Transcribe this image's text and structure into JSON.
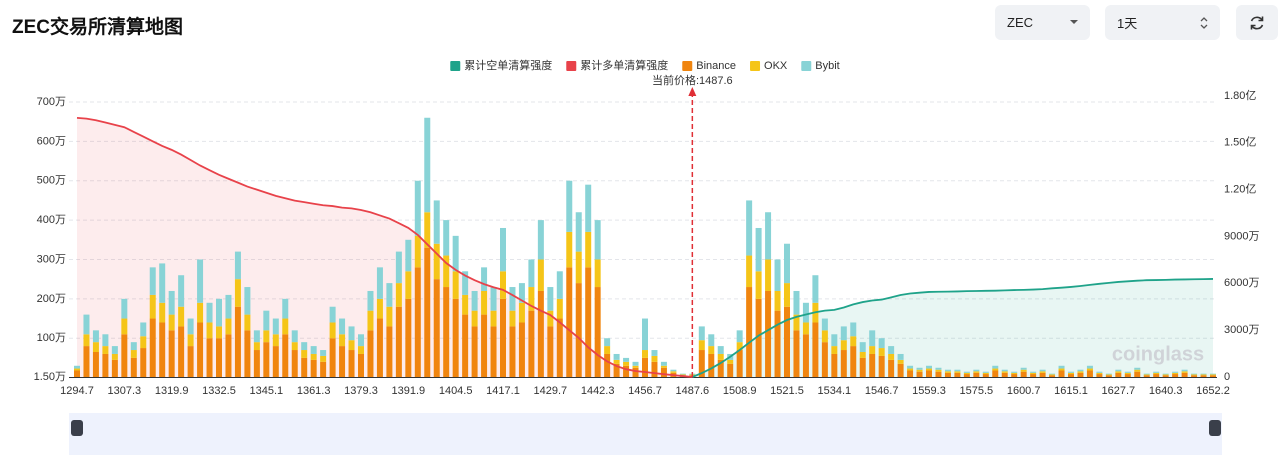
{
  "header": {
    "title": "ZEC交易所清算地图",
    "symbol": "ZEC",
    "range": "1天"
  },
  "chart_data": {
    "type": "bar",
    "watermark": "coinglass",
    "current_price": 1487.6,
    "current_price_label": "当前价格:1487.6",
    "grid": true,
    "categories": [
      "1294.7",
      null,
      null,
      null,
      null,
      "1307.3",
      null,
      null,
      null,
      null,
      "1319.9",
      null,
      null,
      null,
      null,
      "1332.5",
      null,
      null,
      null,
      null,
      "1345.1",
      null,
      null,
      null,
      null,
      "1361.3",
      null,
      null,
      null,
      null,
      "1379.3",
      null,
      null,
      null,
      null,
      "1391.9",
      null,
      null,
      null,
      null,
      "1404.5",
      null,
      null,
      null,
      null,
      "1417.1",
      null,
      null,
      null,
      null,
      "1429.7",
      null,
      null,
      null,
      null,
      "1442.3",
      null,
      null,
      null,
      null,
      "1456.7",
      null,
      null,
      null,
      null,
      "1487.6",
      null,
      null,
      null,
      null,
      "1508.9",
      null,
      null,
      null,
      null,
      "1521.5",
      null,
      null,
      null,
      null,
      "1534.1",
      null,
      null,
      null,
      null,
      "1546.7",
      null,
      null,
      null,
      null,
      "1559.3",
      null,
      null,
      null,
      null,
      "1575.5",
      null,
      null,
      null,
      null,
      "1600.7",
      null,
      null,
      null,
      null,
      "1615.1",
      null,
      null,
      null,
      null,
      "1627.7",
      null,
      null,
      null,
      null,
      "1640.3",
      null,
      null,
      null,
      null,
      "1652.2"
    ],
    "ylim": [
      1.5,
      700
    ],
    "yticks": [
      {
        "value": 1.5,
        "label": "1.50万"
      },
      {
        "value": 100,
        "label": "100万"
      },
      {
        "value": 200,
        "label": "200万"
      },
      {
        "value": 300,
        "label": "300万"
      },
      {
        "value": 400,
        "label": "400万"
      },
      {
        "value": 500,
        "label": "500万"
      },
      {
        "value": 600,
        "label": "600万"
      },
      {
        "value": 700,
        "label": "700万"
      }
    ],
    "y2lim": [
      0,
      18000
    ],
    "y2ticks": [
      0,
      {
        "value": 3000,
        "label": "3000万"
      },
      {
        "value": 6000,
        "label": "6000万"
      },
      {
        "value": 9000,
        "label": "9000万"
      },
      {
        "value": 12000,
        "label": "1.20亿"
      },
      {
        "value": 15000,
        "label": "1.50亿"
      },
      {
        "value": 18000,
        "label": "1.80亿"
      }
    ],
    "series": [
      {
        "name": "累计空单清算强度",
        "type": "line",
        "axis": "y2",
        "color": "#1fa38a",
        "values": [
          null,
          null,
          null,
          null,
          null,
          null,
          null,
          null,
          null,
          null,
          null,
          null,
          null,
          null,
          null,
          null,
          null,
          null,
          null,
          null,
          null,
          null,
          null,
          null,
          null,
          null,
          null,
          null,
          null,
          null,
          null,
          null,
          null,
          null,
          null,
          null,
          null,
          null,
          null,
          null,
          null,
          null,
          null,
          null,
          null,
          null,
          null,
          null,
          null,
          null,
          null,
          null,
          null,
          null,
          null,
          null,
          null,
          null,
          null,
          null,
          null,
          null,
          null,
          null,
          null,
          0,
          250,
          550,
          900,
          1300,
          1730,
          2200,
          2650,
          3000,
          3350,
          3650,
          3850,
          4000,
          4150,
          4250,
          4300,
          4450,
          4650,
          4800,
          4900,
          4960,
          5100,
          5250,
          5350,
          5400,
          5450,
          5460,
          5470,
          5480,
          5500,
          5510,
          5520,
          5530,
          5550,
          5570,
          5580,
          5600,
          5630,
          5680,
          5720,
          5770,
          5830,
          5900,
          5970,
          6030,
          6090,
          6130,
          6170,
          6200,
          6210,
          6220,
          6240,
          6250,
          6260,
          6270,
          6280
        ]
      },
      {
        "name": "累计多单清算强度",
        "type": "line",
        "axis": "y2",
        "color": "#e8424a",
        "values": [
          16600,
          16550,
          16450,
          16300,
          16150,
          16000,
          15700,
          15400,
          15100,
          14800,
          14550,
          14250,
          13900,
          13550,
          13250,
          12950,
          12700,
          12450,
          12200,
          12000,
          11800,
          11600,
          11450,
          11300,
          11200,
          11100,
          11000,
          10950,
          10850,
          10800,
          10700,
          10550,
          10350,
          10150,
          9850,
          9550,
          9100,
          8500,
          7900,
          7300,
          6860,
          6500,
          6200,
          5950,
          5750,
          5580,
          5250,
          4900,
          4550,
          4250,
          3970,
          3500,
          3000,
          2500,
          1900,
          1410,
          1000,
          700,
          500,
          380,
          320,
          250,
          180,
          120,
          60,
          0,
          null,
          null,
          null,
          null,
          null,
          null,
          null,
          null,
          null,
          null,
          null,
          null,
          null,
          null,
          null,
          null,
          null,
          null,
          null,
          null,
          null,
          null,
          null,
          null,
          null,
          null,
          null,
          null,
          null,
          null,
          null,
          null,
          null,
          null,
          null,
          null,
          null,
          null,
          null,
          null,
          null,
          null,
          null,
          null,
          null,
          null,
          null,
          null,
          null,
          null,
          null,
          null,
          null,
          null,
          null
        ]
      },
      {
        "name": "Binance",
        "type": "bar",
        "color": "#f0850f",
        "values": [
          18,
          80,
          65,
          60,
          45,
          110,
          50,
          75,
          150,
          140,
          120,
          130,
          80,
          140,
          100,
          100,
          110,
          180,
          120,
          70,
          90,
          80,
          110,
          70,
          50,
          45,
          40,
          100,
          80,
          70,
          60,
          120,
          150,
          130,
          180,
          200,
          280,
          330,
          250,
          230,
          200,
          160,
          130,
          160,
          130,
          200,
          130,
          140,
          170,
          220,
          130,
          150,
          280,
          240,
          280,
          230,
          60,
          35,
          30,
          25,
          50,
          40,
          25,
          12,
          6,
          6,
          70,
          60,
          45,
          35,
          70,
          230,
          200,
          220,
          170,
          180,
          120,
          110,
          140,
          90,
          60,
          70,
          80,
          50,
          60,
          55,
          45,
          35,
          18,
          15,
          18,
          15,
          12,
          12,
          9,
          12,
          9,
          18,
          12,
          9,
          15,
          9,
          12,
          6,
          18,
          9,
          12,
          18,
          9,
          6,
          12,
          9,
          15,
          6,
          9,
          6,
          9,
          12,
          6,
          6,
          6
        ]
      },
      {
        "name": "OKX",
        "type": "bar",
        "color": "#f5c518",
        "values": [
          5,
          30,
          25,
          20,
          15,
          40,
          20,
          30,
          60,
          50,
          40,
          50,
          30,
          50,
          40,
          30,
          40,
          70,
          40,
          20,
          30,
          30,
          40,
          20,
          20,
          15,
          15,
          40,
          30,
          25,
          20,
          50,
          50,
          50,
          60,
          70,
          80,
          90,
          90,
          80,
          70,
          50,
          40,
          60,
          40,
          70,
          40,
          50,
          60,
          80,
          40,
          50,
          90,
          80,
          90,
          70,
          20,
          10,
          10,
          5,
          20,
          15,
          5,
          4,
          2,
          2,
          25,
          20,
          15,
          10,
          20,
          80,
          70,
          80,
          50,
          60,
          40,
          30,
          50,
          30,
          20,
          25,
          25,
          15,
          20,
          20,
          15,
          10,
          5,
          5,
          5,
          5,
          4,
          4,
          3,
          4,
          3,
          5,
          4,
          3,
          5,
          3,
          4,
          2,
          5,
          3,
          4,
          5,
          3,
          2,
          4,
          3,
          5,
          2,
          3,
          2,
          3,
          4,
          2,
          2,
          2
        ]
      },
      {
        "name": "Bybit",
        "type": "bar",
        "color": "#88d3d6",
        "values": [
          7,
          50,
          30,
          30,
          20,
          50,
          20,
          35,
          70,
          100,
          60,
          80,
          40,
          110,
          50,
          70,
          60,
          70,
          70,
          30,
          50,
          40,
          50,
          30,
          20,
          20,
          15,
          40,
          40,
          35,
          30,
          50,
          80,
          60,
          80,
          80,
          140,
          240,
          110,
          90,
          90,
          60,
          50,
          60,
          60,
          110,
          60,
          50,
          70,
          100,
          60,
          70,
          130,
          100,
          120,
          100,
          20,
          15,
          10,
          10,
          80,
          15,
          10,
          4,
          2,
          2,
          35,
          30,
          20,
          15,
          30,
          140,
          110,
          120,
          80,
          100,
          60,
          50,
          70,
          30,
          30,
          35,
          35,
          25,
          40,
          25,
          20,
          15,
          7,
          5,
          7,
          5,
          4,
          4,
          3,
          4,
          3,
          7,
          4,
          3,
          5,
          3,
          4,
          2,
          7,
          3,
          4,
          7,
          3,
          2,
          4,
          3,
          5,
          2,
          3,
          2,
          3,
          4,
          2,
          2,
          2
        ]
      }
    ]
  }
}
